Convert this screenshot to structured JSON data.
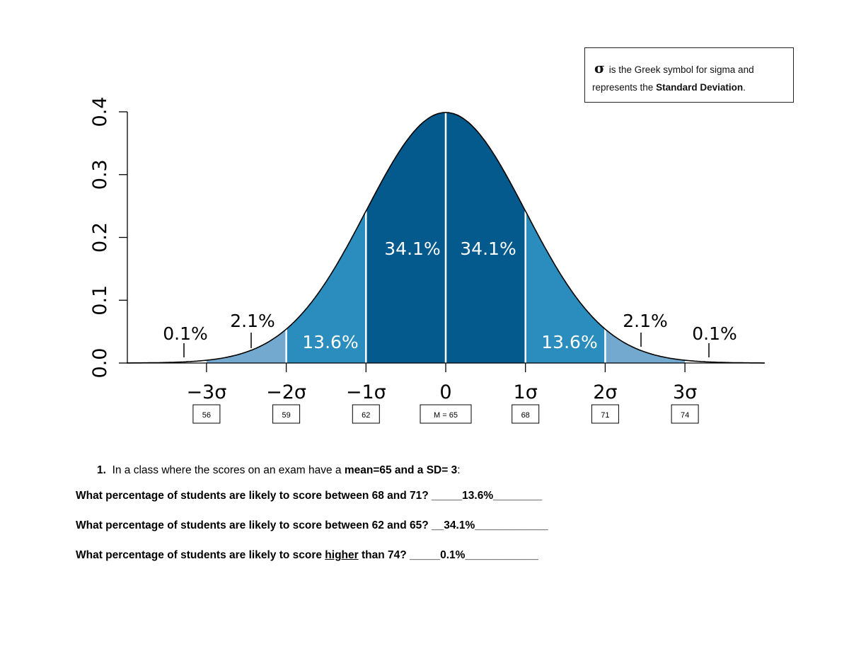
{
  "chart_data": {
    "type": "area",
    "description_type": "normal distribution curve",
    "x_ticks": [
      "−3σ",
      "−2σ",
      "−1σ",
      "0",
      "1σ",
      "2σ",
      "3σ"
    ],
    "x_tick_values": [
      -3,
      -2,
      -1,
      0,
      1,
      2,
      3
    ],
    "score_labels": [
      "56",
      "59",
      "62",
      "M = 65",
      "68",
      "71",
      "74"
    ],
    "y_ticks": [
      "0.0",
      "0.1",
      "0.2",
      "0.3",
      "0.4"
    ],
    "y_tick_values": [
      0,
      0.1,
      0.2,
      0.3,
      0.4
    ],
    "xlim": [
      -4,
      4
    ],
    "ylim": [
      0,
      0.4
    ],
    "mean": 0,
    "sd": 1,
    "segments": [
      {
        "from": -3,
        "to": -2,
        "label": "2.1%",
        "color": "#74a9cf"
      },
      {
        "from": -2,
        "to": -1,
        "label": "13.6%",
        "color": "#2b8cbe"
      },
      {
        "from": -1,
        "to": 0,
        "label": "34.1%",
        "color": "#045a8d"
      },
      {
        "from": 0,
        "to": 1,
        "label": "34.1%",
        "color": "#045a8d"
      },
      {
        "from": 1,
        "to": 2,
        "label": "13.6%",
        "color": "#2b8cbe"
      },
      {
        "from": 2,
        "to": 3,
        "label": "2.1%",
        "color": "#74a9cf"
      }
    ],
    "tail_labels": [
      "0.1%",
      "0.1%"
    ]
  },
  "note": {
    "symbol": "σ",
    "line1": "is the Greek symbol for sigma and",
    "line2_prefix": "represents the ",
    "line2_bold": "Standard Deviation",
    "line2_suffix": "."
  },
  "question": {
    "number": "1.",
    "intro_prefix": "In a class where the scores on an exam have a ",
    "intro_bold": "mean=65 and a SD= 3",
    "intro_suffix": ":",
    "lines": [
      {
        "text": "What percentage of students are likely to score between 68 and 71? ",
        "answer": "_____13.6%________"
      },
      {
        "text": "What percentage of students are likely to score between 62 and 65? ",
        "answer": "__34.1%____________"
      }
    ],
    "line3_prefix": "What percentage of students are likely to score ",
    "line3_underlined": "higher",
    "line3_suffix": " than 74? ",
    "line3_answer": "_____0.1%____________"
  }
}
